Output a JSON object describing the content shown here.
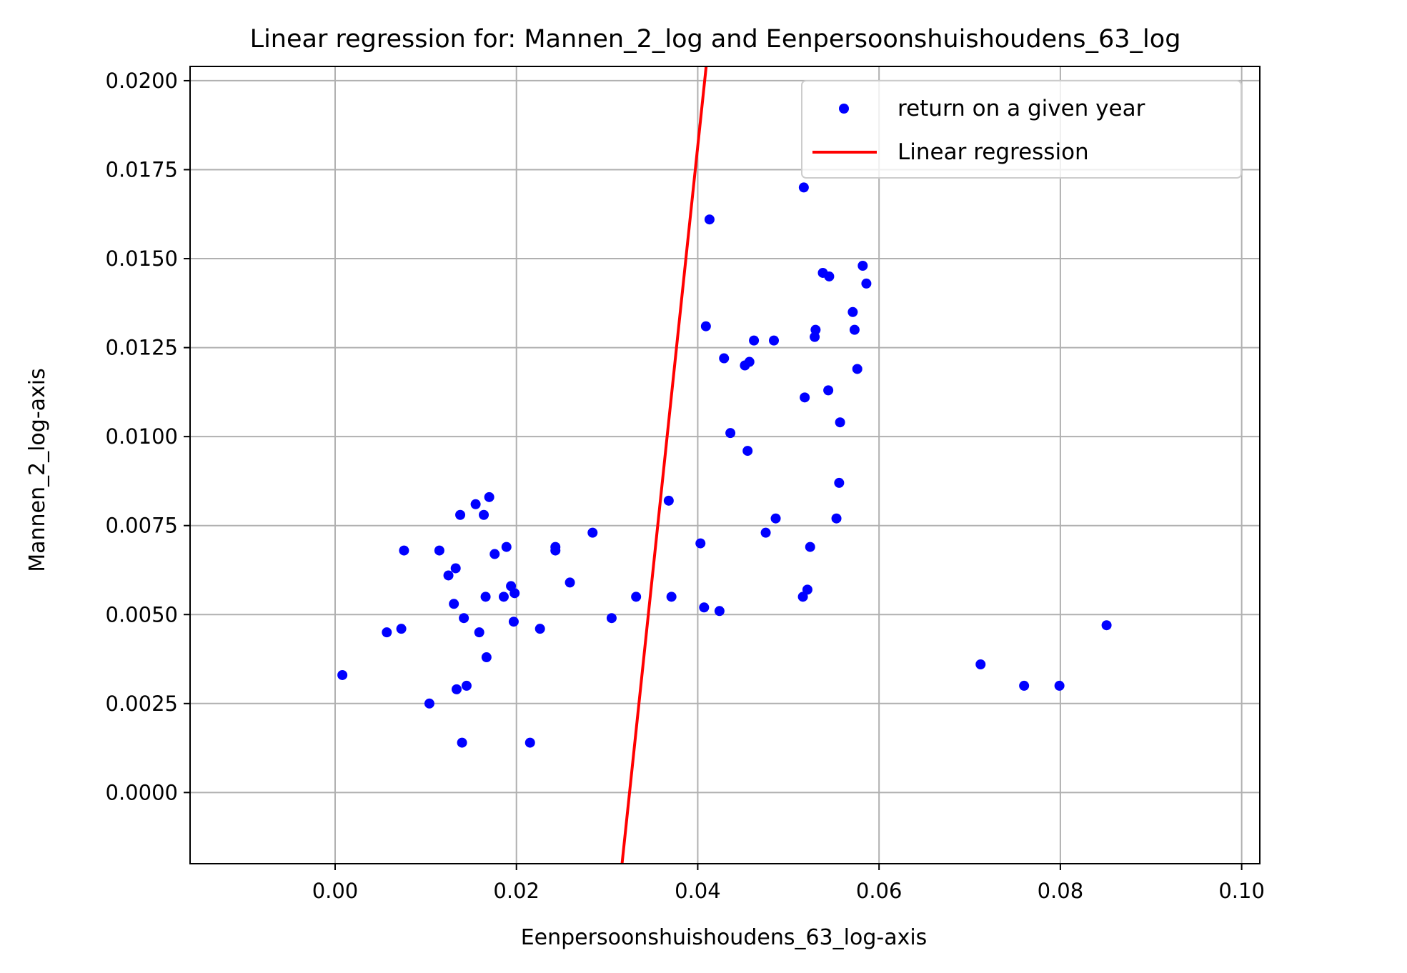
{
  "colors": {
    "points": "#0000ff",
    "regression": "#ff0000",
    "grid": "#b0b0b0"
  },
  "chart_data": {
    "type": "scatter",
    "title": "Linear regression for: Mannen_2_log and Eenpersoonshuishoudens_63_log",
    "xlabel": "Eenpersoonshuishoudens_63_log-axis",
    "ylabel": "Mannen_2_log-axis",
    "xlim": [
      -0.016,
      0.102
    ],
    "ylim": [
      -0.002,
      0.0204
    ],
    "xticks": [
      0.0,
      0.02,
      0.04,
      0.06,
      0.08,
      0.1
    ],
    "xtick_labels": [
      "0.00",
      "0.02",
      "0.04",
      "0.06",
      "0.08",
      "0.10"
    ],
    "yticks": [
      0.0,
      0.0025,
      0.005,
      0.0075,
      0.01,
      0.0125,
      0.015,
      0.0175,
      0.02
    ],
    "ytick_labels": [
      "0.0000",
      "0.0025",
      "0.0050",
      "0.0075",
      "0.0100",
      "0.0125",
      "0.0150",
      "0.0175",
      "0.0200"
    ],
    "grid": true,
    "legend_position": "top-right",
    "legend": [
      "return on a given year",
      "Linear regression"
    ],
    "series": [
      {
        "name": "return on a given year",
        "type": "scatter",
        "points": [
          [
            0.0008,
            0.0033
          ],
          [
            0.0057,
            0.0045
          ],
          [
            0.0073,
            0.0046
          ],
          [
            0.0076,
            0.0068
          ],
          [
            0.0104,
            0.0025
          ],
          [
            0.0115,
            0.0068
          ],
          [
            0.0125,
            0.0061
          ],
          [
            0.0131,
            0.0053
          ],
          [
            0.0133,
            0.0063
          ],
          [
            0.0134,
            0.0029
          ],
          [
            0.0138,
            0.0078
          ],
          [
            0.014,
            0.0014
          ],
          [
            0.0142,
            0.0049
          ],
          [
            0.0145,
            0.003
          ],
          [
            0.0155,
            0.0081
          ],
          [
            0.0159,
            0.0045
          ],
          [
            0.0164,
            0.0078
          ],
          [
            0.0166,
            0.0055
          ],
          [
            0.0167,
            0.0038
          ],
          [
            0.017,
            0.0083
          ],
          [
            0.0176,
            0.0067
          ],
          [
            0.0186,
            0.0055
          ],
          [
            0.0189,
            0.0069
          ],
          [
            0.0194,
            0.0058
          ],
          [
            0.0197,
            0.0048
          ],
          [
            0.0198,
            0.0056
          ],
          [
            0.0215,
            0.0014
          ],
          [
            0.0226,
            0.0046
          ],
          [
            0.0243,
            0.0069
          ],
          [
            0.0243,
            0.0068
          ],
          [
            0.0259,
            0.0059
          ],
          [
            0.0284,
            0.0073
          ],
          [
            0.0305,
            0.0049
          ],
          [
            0.0332,
            0.0055
          ],
          [
            0.0368,
            0.0082
          ],
          [
            0.0371,
            0.0055
          ],
          [
            0.0403,
            0.007
          ],
          [
            0.0407,
            0.0052
          ],
          [
            0.0409,
            0.0131
          ],
          [
            0.0413,
            0.0161
          ],
          [
            0.0424,
            0.0051
          ],
          [
            0.0429,
            0.0122
          ],
          [
            0.0436,
            0.0101
          ],
          [
            0.0452,
            0.012
          ],
          [
            0.0455,
            0.0096
          ],
          [
            0.0457,
            0.0121
          ],
          [
            0.0462,
            0.0127
          ],
          [
            0.0475,
            0.0073
          ],
          [
            0.0484,
            0.0127
          ],
          [
            0.0486,
            0.0077
          ],
          [
            0.0516,
            0.0055
          ],
          [
            0.0517,
            0.017
          ],
          [
            0.0518,
            0.0111
          ],
          [
            0.0521,
            0.0057
          ],
          [
            0.0524,
            0.0069
          ],
          [
            0.0529,
            0.0128
          ],
          [
            0.053,
            0.013
          ],
          [
            0.0538,
            0.0146
          ],
          [
            0.0544,
            0.0113
          ],
          [
            0.0545,
            0.0145
          ],
          [
            0.0553,
            0.0077
          ],
          [
            0.0556,
            0.0087
          ],
          [
            0.0557,
            0.0104
          ],
          [
            0.0571,
            0.0135
          ],
          [
            0.0573,
            0.013
          ],
          [
            0.0576,
            0.0119
          ],
          [
            0.0582,
            0.0148
          ],
          [
            0.0586,
            0.0143
          ],
          [
            0.0712,
            0.0036
          ],
          [
            0.076,
            0.003
          ],
          [
            0.0799,
            0.003
          ],
          [
            0.0851,
            0.0047
          ]
        ]
      },
      {
        "name": "Linear regression",
        "type": "line",
        "points": [
          [
            0.03165,
            -0.002
          ],
          [
            0.04093,
            0.0204
          ]
        ]
      }
    ]
  }
}
